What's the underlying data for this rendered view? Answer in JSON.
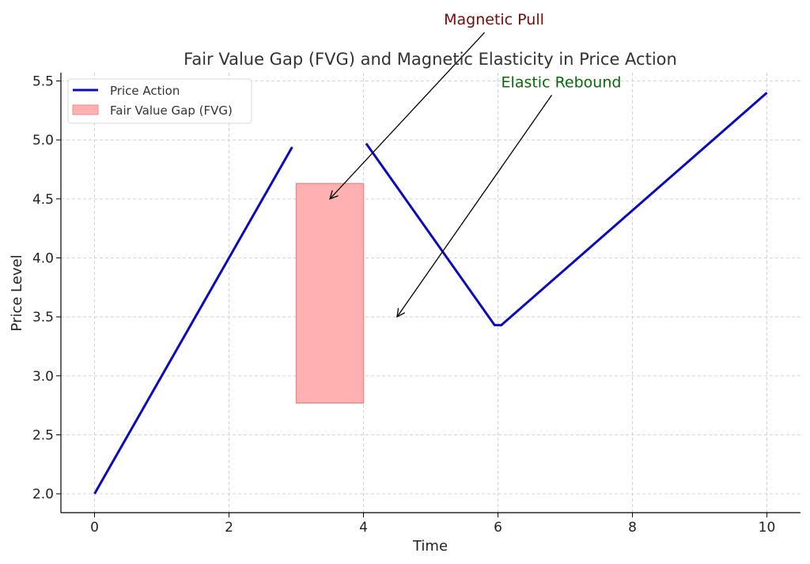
{
  "chart_data": {
    "type": "line",
    "title": "Fair Value Gap (FVG) and Magnetic Elasticity in Price Action",
    "xlabel": "Time",
    "ylabel": "Price Level",
    "xlim": [
      -0.5,
      10.5
    ],
    "ylim": [
      1.84,
      5.57
    ],
    "xticks": [
      0,
      2,
      4,
      6,
      8,
      10
    ],
    "xtick_labels": [
      "0",
      "2",
      "4",
      "6",
      "8",
      "10"
    ],
    "yticks": [
      2.0,
      2.5,
      3.0,
      3.5,
      4.0,
      4.5,
      5.0,
      5.5
    ],
    "ytick_labels": [
      "2.0",
      "2.5",
      "3.0",
      "3.5",
      "4.0",
      "4.5",
      "5.0",
      "5.5"
    ],
    "grid": true,
    "legend_position": "top-left",
    "series": [
      {
        "name": "Price Action",
        "color": "#0a0ac0",
        "segments": [
          [
            [
              0,
              2.0
            ],
            [
              2.94,
              4.94
            ]
          ],
          [
            [
              4.04,
              4.97
            ],
            [
              5.95,
              3.43
            ],
            [
              6.05,
              3.43
            ],
            [
              10,
              5.4
            ]
          ]
        ]
      }
    ],
    "regions": [
      {
        "name": "Fair Value Gap (FVG)",
        "x": [
          3.0,
          4.0
        ],
        "y": [
          2.77,
          4.63
        ],
        "color": "#ffb1b1",
        "edge_color": "#f08a8a"
      }
    ],
    "annotations": [
      {
        "text": "Magnetic Pull",
        "color": "#7a0a0a",
        "from": [
          5.8,
          5.91
        ],
        "to": [
          3.5,
          4.5
        ]
      },
      {
        "text": "Elastic Rebound",
        "color": "#0a6a0a",
        "from": [
          6.8,
          5.38
        ],
        "to": [
          4.5,
          3.5
        ]
      }
    ]
  }
}
